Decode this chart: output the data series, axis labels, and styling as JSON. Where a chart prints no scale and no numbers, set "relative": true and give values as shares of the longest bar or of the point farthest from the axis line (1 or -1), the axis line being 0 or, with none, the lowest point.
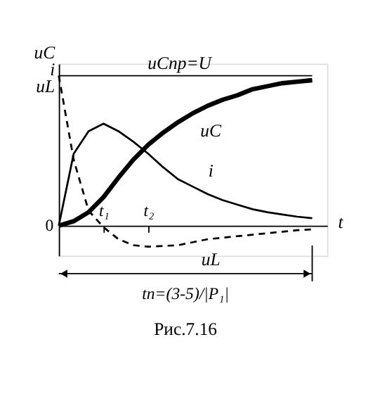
{
  "chart_data": {
    "type": "line",
    "relative": true,
    "xlabel": "t",
    "ylabel": "uC i uL",
    "categories": [
      null,
      null,
      null,
      "t₁",
      null,
      null,
      "t₂",
      null,
      null,
      null,
      null,
      null,
      null,
      null,
      null,
      null,
      null,
      null
    ],
    "series": [
      {
        "name": "uC",
        "color": "#000000",
        "line_style": "solid",
        "values": [
          0,
          0.03,
          0.09,
          0.19,
          0.32,
          0.44,
          0.54,
          0.62,
          0.69,
          0.75,
          0.8,
          0.84,
          0.87,
          0.91,
          0.93,
          0.95,
          0.96,
          0.97
        ]
      },
      {
        "name": "i",
        "color": "#000000",
        "line_style": "solid",
        "values": [
          0,
          0.48,
          0.63,
          0.68,
          0.63,
          0.56,
          0.48,
          0.39,
          0.31,
          0.26,
          0.21,
          0.17,
          0.14,
          0.11,
          0.09,
          0.075,
          0.06,
          0.05
        ]
      },
      {
        "name": "uL",
        "color": "#000000",
        "line_style": "dashed",
        "values": [
          1,
          0.44,
          0.1,
          -0.01,
          -0.09,
          -0.13,
          -0.14,
          -0.135,
          -0.13,
          -0.11,
          -0.09,
          -0.08,
          -0.07,
          -0.06,
          -0.05,
          -0.04,
          -0.03,
          -0.025
        ]
      }
    ],
    "ref_lines": [
      {
        "axis": "y",
        "value": 1,
        "label": "uCпр=U"
      }
    ],
    "annotations": [
      "0",
      "tп=(3-5)/|P₁|",
      "Рис.7.16"
    ],
    "grid": false,
    "legend": false,
    "marker": "none"
  }
}
